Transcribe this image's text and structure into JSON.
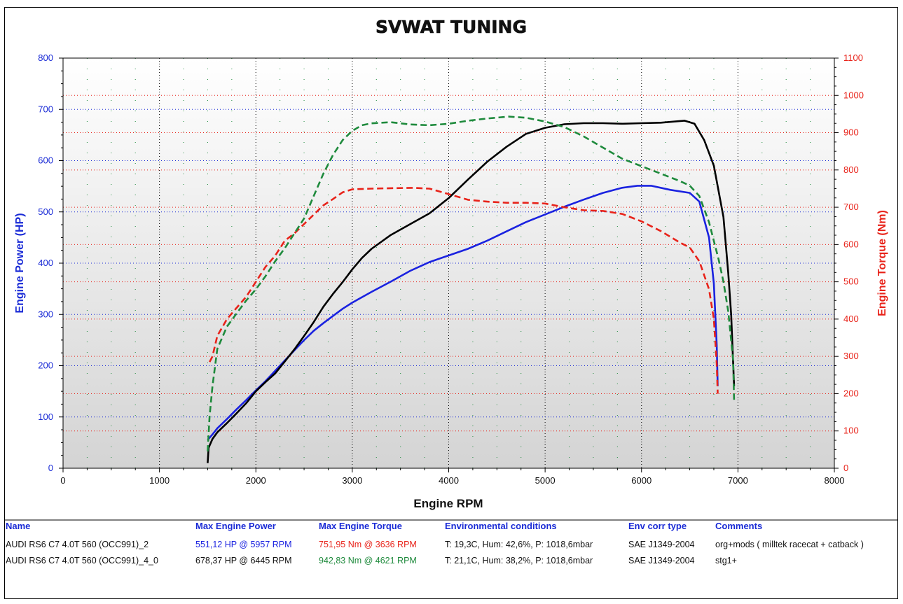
{
  "chart_data": {
    "type": "line",
    "title": "SVWAT TUNING",
    "xlabel": "Engine RPM",
    "ylabel_left": "Engine Power (HP)",
    "ylabel_right": "Engine Torque (Nm)",
    "xlim": [
      0,
      8000
    ],
    "ylim_left": [
      0,
      800
    ],
    "ylim_right": [
      0,
      1100
    ],
    "x_ticks": [
      0,
      1000,
      2000,
      3000,
      4000,
      5000,
      6000,
      7000,
      8000
    ],
    "y_ticks_left": [
      0,
      100,
      200,
      300,
      400,
      500,
      600,
      700,
      800
    ],
    "y_ticks_right": [
      0,
      100,
      200,
      300,
      400,
      500,
      600,
      700,
      800,
      900,
      1000,
      1100
    ],
    "grid": true,
    "colors": {
      "left_axis": "#1a2bd6",
      "right_axis": "#e8231a",
      "power_1": "#1a22e0",
      "torque_1": "#e8231a",
      "power_2": "#000000",
      "torque_2": "#1e8a3c",
      "plot_bg_top": "#ffffff",
      "plot_bg_bottom": "#d4d4d4"
    },
    "series": [
      {
        "axis": "left",
        "color_key": "power_1",
        "dashed": false,
        "points": [
          [
            1500,
            55
          ],
          [
            1550,
            66
          ],
          [
            1600,
            78
          ],
          [
            1700,
            96
          ],
          [
            1800,
            115
          ],
          [
            1900,
            133
          ],
          [
            2000,
            152
          ],
          [
            2100,
            170
          ],
          [
            2200,
            190
          ],
          [
            2300,
            210
          ],
          [
            2400,
            230
          ],
          [
            2500,
            250
          ],
          [
            2600,
            268
          ],
          [
            2700,
            283
          ],
          [
            2800,
            297
          ],
          [
            2900,
            311
          ],
          [
            3000,
            323
          ],
          [
            3200,
            344
          ],
          [
            3400,
            364
          ],
          [
            3600,
            385
          ],
          [
            3800,
            402
          ],
          [
            4000,
            415
          ],
          [
            4200,
            428
          ],
          [
            4400,
            444
          ],
          [
            4600,
            462
          ],
          [
            4800,
            480
          ],
          [
            5000,
            495
          ],
          [
            5200,
            510
          ],
          [
            5400,
            524
          ],
          [
            5600,
            537
          ],
          [
            5800,
            547
          ],
          [
            5957,
            551
          ],
          [
            6100,
            551
          ],
          [
            6300,
            543
          ],
          [
            6500,
            537
          ],
          [
            6600,
            520
          ],
          [
            6700,
            450
          ],
          [
            6750,
            360
          ],
          [
            6780,
            240
          ],
          [
            6790,
            160
          ]
        ]
      },
      {
        "axis": "left",
        "color_key": "power_2",
        "dashed": false,
        "points": [
          [
            1500,
            10
          ],
          [
            1510,
            40
          ],
          [
            1550,
            57
          ],
          [
            1600,
            70
          ],
          [
            1700,
            88
          ],
          [
            1800,
            107
          ],
          [
            1900,
            127
          ],
          [
            2000,
            150
          ],
          [
            2100,
            168
          ],
          [
            2200,
            185
          ],
          [
            2300,
            208
          ],
          [
            2400,
            232
          ],
          [
            2500,
            258
          ],
          [
            2600,
            285
          ],
          [
            2700,
            315
          ],
          [
            2800,
            340
          ],
          [
            2900,
            363
          ],
          [
            3000,
            388
          ],
          [
            3100,
            410
          ],
          [
            3200,
            428
          ],
          [
            3400,
            455
          ],
          [
            3600,
            476
          ],
          [
            3800,
            497
          ],
          [
            4000,
            527
          ],
          [
            4200,
            563
          ],
          [
            4400,
            598
          ],
          [
            4600,
            627
          ],
          [
            4800,
            652
          ],
          [
            5000,
            664
          ],
          [
            5200,
            671
          ],
          [
            5400,
            673
          ],
          [
            5600,
            673
          ],
          [
            5800,
            672
          ],
          [
            6000,
            673
          ],
          [
            6200,
            674
          ],
          [
            6445,
            678
          ],
          [
            6550,
            672
          ],
          [
            6650,
            640
          ],
          [
            6750,
            590
          ],
          [
            6850,
            490
          ],
          [
            6900,
            380
          ],
          [
            6930,
            300
          ],
          [
            6960,
            160
          ]
        ]
      },
      {
        "axis": "right",
        "color_key": "torque_1",
        "dashed": true,
        "points": [
          [
            1520,
            285
          ],
          [
            1550,
            300
          ],
          [
            1600,
            355
          ],
          [
            1700,
            400
          ],
          [
            1800,
            430
          ],
          [
            1900,
            460
          ],
          [
            2000,
            500
          ],
          [
            2100,
            540
          ],
          [
            2200,
            570
          ],
          [
            2300,
            610
          ],
          [
            2400,
            630
          ],
          [
            2500,
            655
          ],
          [
            2600,
            680
          ],
          [
            2700,
            705
          ],
          [
            2800,
            722
          ],
          [
            2900,
            740
          ],
          [
            3000,
            748
          ],
          [
            3200,
            750
          ],
          [
            3400,
            751
          ],
          [
            3636,
            752
          ],
          [
            3800,
            750
          ],
          [
            4000,
            735
          ],
          [
            4200,
            720
          ],
          [
            4400,
            715
          ],
          [
            4600,
            712
          ],
          [
            4800,
            712
          ],
          [
            5000,
            710
          ],
          [
            5200,
            700
          ],
          [
            5400,
            692
          ],
          [
            5600,
            690
          ],
          [
            5800,
            682
          ],
          [
            6000,
            662
          ],
          [
            6200,
            636
          ],
          [
            6400,
            605
          ],
          [
            6500,
            592
          ],
          [
            6600,
            555
          ],
          [
            6700,
            480
          ],
          [
            6750,
            400
          ],
          [
            6780,
            280
          ],
          [
            6790,
            200
          ]
        ]
      },
      {
        "axis": "right",
        "color_key": "torque_2",
        "dashed": true,
        "points": [
          [
            1500,
            45
          ],
          [
            1520,
            140
          ],
          [
            1550,
            220
          ],
          [
            1600,
            320
          ],
          [
            1700,
            380
          ],
          [
            1800,
            415
          ],
          [
            1900,
            450
          ],
          [
            2000,
            480
          ],
          [
            2100,
            515
          ],
          [
            2200,
            555
          ],
          [
            2300,
            590
          ],
          [
            2400,
            630
          ],
          [
            2500,
            670
          ],
          [
            2600,
            730
          ],
          [
            2700,
            790
          ],
          [
            2800,
            840
          ],
          [
            2900,
            880
          ],
          [
            3000,
            905
          ],
          [
            3100,
            920
          ],
          [
            3200,
            925
          ],
          [
            3400,
            928
          ],
          [
            3600,
            922
          ],
          [
            3800,
            920
          ],
          [
            4000,
            924
          ],
          [
            4200,
            932
          ],
          [
            4400,
            938
          ],
          [
            4621,
            943
          ],
          [
            4800,
            940
          ],
          [
            5000,
            930
          ],
          [
            5200,
            915
          ],
          [
            5400,
            890
          ],
          [
            5600,
            860
          ],
          [
            5800,
            830
          ],
          [
            6000,
            810
          ],
          [
            6200,
            790
          ],
          [
            6400,
            770
          ],
          [
            6500,
            758
          ],
          [
            6600,
            730
          ],
          [
            6700,
            660
          ],
          [
            6800,
            560
          ],
          [
            6850,
            500
          ],
          [
            6900,
            420
          ],
          [
            6950,
            290
          ],
          [
            6960,
            180
          ]
        ]
      }
    ],
    "table": {
      "headers": [
        "Name",
        "Max Engine Power",
        "Max Engine Torque",
        "Environmental conditions",
        "Env corr type",
        "Comments"
      ],
      "rows": [
        [
          "AUDI RS6 C7 4.0T 560 (OCC991)_2",
          "551,12 HP @ 5957 RPM",
          "751,95 Nm @ 3636 RPM",
          "T: 19,3C, Hum: 42,6%, P: 1018,6mbar",
          "SAE J1349-2004",
          "org+mods ( milltek racecat + catback )"
        ],
        [
          "AUDI RS6 C7 4.0T 560 (OCC991)_4_0",
          "678,37 HP @ 6445 RPM",
          "942,83 Nm @ 4621 RPM",
          "T: 21,1C, Hum: 38,2%, P: 1018,6mbar",
          "SAE J1349-2004",
          "stg1+"
        ]
      ]
    }
  }
}
